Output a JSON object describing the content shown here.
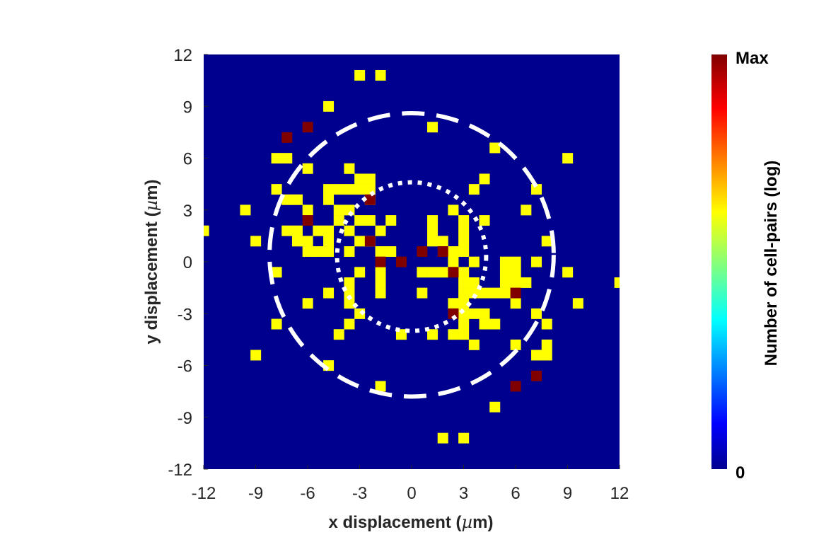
{
  "chart_data": {
    "type": "heatmap",
    "title": "",
    "xlabel_main": "x displacement (",
    "xlabel_mu": "µ",
    "xlabel_end": "m)",
    "ylabel_main": "y displacement (",
    "ylabel_mu": "µ",
    "ylabel_end": "m)",
    "xlim": [
      -12,
      12
    ],
    "ylim": [
      -12,
      12
    ],
    "bin_size": 0.6,
    "xticks": [
      -12,
      -9,
      -6,
      -3,
      0,
      3,
      6,
      9,
      12
    ],
    "yticks": [
      -12,
      -9,
      -6,
      -3,
      0,
      3,
      6,
      9,
      12
    ],
    "xtick_labels": [
      "-12",
      "-9",
      "-6",
      "-3",
      "0",
      "3",
      "6",
      "9",
      "12"
    ],
    "ytick_labels": [
      "-12",
      "-9",
      "-6",
      "-3",
      "0",
      "3",
      "6",
      "9",
      "12"
    ],
    "background_color": "#00008f",
    "low_count_color": "#ffff00",
    "high_count_color": "#800000",
    "colorbar": {
      "label": "Number of cell-pairs (log)",
      "max_label": "Max",
      "min_label": "0",
      "colormap": "jet"
    },
    "cells_low": [
      [
        -1.8,
        10.8
      ],
      [
        -3.0,
        10.8
      ],
      [
        -4.8,
        9.0
      ],
      [
        1.2,
        7.8
      ],
      [
        4.8,
        6.6
      ],
      [
        -7.8,
        6.0
      ],
      [
        -7.2,
        6.0
      ],
      [
        9.0,
        6.0
      ],
      [
        -6.0,
        5.4
      ],
      [
        -3.6,
        5.4
      ],
      [
        -3.0,
        4.8
      ],
      [
        -2.4,
        4.8
      ],
      [
        -2.4,
        4.2
      ],
      [
        4.2,
        4.8
      ],
      [
        -4.2,
        4.2
      ],
      [
        -4.8,
        4.2
      ],
      [
        -4.8,
        3.6
      ],
      [
        -3.6,
        4.2
      ],
      [
        -3.0,
        4.2
      ],
      [
        -7.8,
        4.2
      ],
      [
        3.6,
        4.2
      ],
      [
        7.2,
        4.2
      ],
      [
        -7.2,
        3.6
      ],
      [
        -6.6,
        3.6
      ],
      [
        -2.4,
        3.6
      ],
      [
        -6.0,
        3.0
      ],
      [
        -9.6,
        3.0
      ],
      [
        2.4,
        3.0
      ],
      [
        6.6,
        3.0
      ],
      [
        -4.2,
        3.0
      ],
      [
        -3.6,
        3.0
      ],
      [
        -4.2,
        2.4
      ],
      [
        -3.0,
        2.4
      ],
      [
        -2.4,
        2.4
      ],
      [
        -1.2,
        2.4
      ],
      [
        1.2,
        2.4
      ],
      [
        3.0,
        2.4
      ],
      [
        4.2,
        2.4
      ],
      [
        -12.0,
        1.8
      ],
      [
        -7.2,
        1.8
      ],
      [
        -6.6,
        1.8
      ],
      [
        -5.4,
        1.8
      ],
      [
        -4.8,
        1.8
      ],
      [
        -3.6,
        1.8
      ],
      [
        -1.8,
        1.8
      ],
      [
        1.2,
        1.8
      ],
      [
        3.0,
        1.8
      ],
      [
        -9.0,
        1.2
      ],
      [
        -6.6,
        1.2
      ],
      [
        -6.0,
        1.2
      ],
      [
        -4.8,
        1.2
      ],
      [
        -3.0,
        1.2
      ],
      [
        -2.4,
        1.2
      ],
      [
        1.2,
        1.2
      ],
      [
        1.8,
        1.2
      ],
      [
        3.0,
        1.2
      ],
      [
        7.8,
        1.2
      ],
      [
        -6.0,
        0.6
      ],
      [
        -5.4,
        0.6
      ],
      [
        -4.8,
        0.6
      ],
      [
        -3.6,
        0.6
      ],
      [
        -1.8,
        0.6
      ],
      [
        -1.2,
        0.6
      ],
      [
        2.4,
        0.6
      ],
      [
        3.0,
        0.6
      ],
      [
        2.4,
        0.0
      ],
      [
        3.6,
        0.0
      ],
      [
        5.4,
        0.0
      ],
      [
        6.0,
        0.0
      ],
      [
        7.2,
        0.0
      ],
      [
        -7.8,
        -0.6
      ],
      [
        -3.0,
        -0.6
      ],
      [
        -1.8,
        -0.6
      ],
      [
        0.6,
        -0.6
      ],
      [
        1.2,
        -0.6
      ],
      [
        1.8,
        -0.6
      ],
      [
        3.0,
        -0.6
      ],
      [
        5.4,
        -0.6
      ],
      [
        6.0,
        -0.6
      ],
      [
        9.0,
        -0.6
      ],
      [
        -3.6,
        -1.2
      ],
      [
        -1.8,
        -1.2
      ],
      [
        3.0,
        -1.2
      ],
      [
        3.6,
        -1.2
      ],
      [
        5.4,
        -1.2
      ],
      [
        6.0,
        -1.2
      ],
      [
        6.6,
        -1.2
      ],
      [
        12.0,
        -1.2
      ],
      [
        -4.8,
        -1.8
      ],
      [
        -3.6,
        -1.8
      ],
      [
        -1.8,
        -1.8
      ],
      [
        0.6,
        -1.8
      ],
      [
        3.0,
        -1.8
      ],
      [
        3.6,
        -1.8
      ],
      [
        4.2,
        -1.8
      ],
      [
        4.8,
        -1.8
      ],
      [
        5.4,
        -1.8
      ],
      [
        -6.0,
        -2.4
      ],
      [
        -3.6,
        -2.4
      ],
      [
        2.4,
        -2.4
      ],
      [
        3.0,
        -2.4
      ],
      [
        6.0,
        -2.4
      ],
      [
        9.6,
        -2.4
      ],
      [
        -3.0,
        -3.0
      ],
      [
        3.0,
        -3.0
      ],
      [
        3.6,
        -3.0
      ],
      [
        4.2,
        -3.0
      ],
      [
        7.2,
        -3.0
      ],
      [
        -7.8,
        -3.6
      ],
      [
        -3.6,
        -3.6
      ],
      [
        3.0,
        -3.6
      ],
      [
        4.2,
        -3.6
      ],
      [
        4.8,
        -3.6
      ],
      [
        7.8,
        -3.6
      ],
      [
        -4.2,
        -4.2
      ],
      [
        -0.6,
        -4.2
      ],
      [
        1.2,
        -4.2
      ],
      [
        2.4,
        -4.2
      ],
      [
        3.0,
        -4.2
      ],
      [
        3.6,
        -4.8
      ],
      [
        6.0,
        -4.8
      ],
      [
        7.8,
        -4.8
      ],
      [
        -9.0,
        -5.4
      ],
      [
        7.2,
        -5.4
      ],
      [
        7.8,
        -5.4
      ],
      [
        -4.8,
        -6.0
      ],
      [
        -1.8,
        -7.2
      ],
      [
        4.8,
        -8.4
      ],
      [
        1.8,
        -10.2
      ],
      [
        3.0,
        -10.2
      ]
    ],
    "cells_high": [
      [
        -6.0,
        7.8
      ],
      [
        -7.2,
        7.2
      ],
      [
        -2.4,
        3.6
      ],
      [
        -6.0,
        2.4
      ],
      [
        -2.4,
        1.2
      ],
      [
        0.6,
        0.6
      ],
      [
        1.8,
        0.6
      ],
      [
        -1.8,
        0.0
      ],
      [
        -0.6,
        0.0
      ],
      [
        2.4,
        -0.6
      ],
      [
        6.0,
        -1.8
      ],
      [
        2.4,
        -3.0
      ],
      [
        7.2,
        -6.6
      ],
      [
        6.0,
        -7.2
      ]
    ],
    "circles": [
      {
        "style": "dashed",
        "cx": 0.0,
        "cy": 0.4,
        "r": 8.2,
        "color": "#ffffff"
      },
      {
        "style": "dotted",
        "cx": 0.0,
        "cy": 0.3,
        "r": 4.3,
        "color": "#ffffff"
      }
    ]
  }
}
